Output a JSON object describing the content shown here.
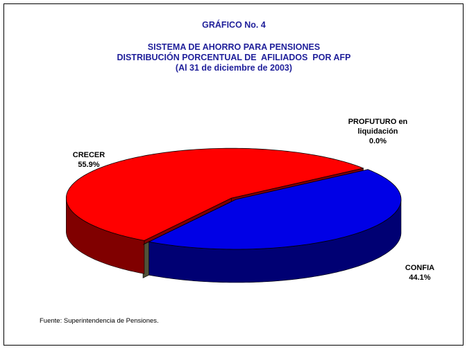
{
  "chart_data": {
    "type": "pie3d",
    "title": "GRÁFICO No. 4",
    "subtitle": [
      "SISTEMA DE AHORRO PARA PENSIONES",
      "DISTRIBUCIÓN PORCENTUAL DE  AFILIADOS  POR AFP",
      "(Al 31 de diciembre de 2003)"
    ],
    "source": "Fuente: Superintendencia de Pensiones.",
    "categories": [
      "CRECER",
      "CONFIA",
      "PROFUTURO en liquidación"
    ],
    "values": [
      55.9,
      44.1,
      0.0
    ],
    "value_labels": [
      "55.9%",
      "44.1%",
      "0.0%"
    ],
    "colors": [
      "#ff0000",
      "#0000e6",
      "#a3a370"
    ]
  }
}
